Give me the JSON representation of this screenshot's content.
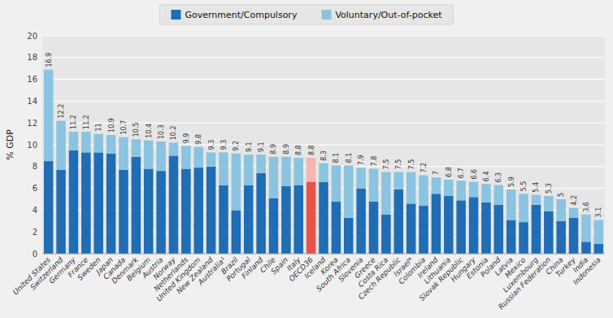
{
  "chart_data": {
    "type": "bar",
    "stacked": true,
    "grid": true,
    "legend": "top",
    "data_labels": true,
    "ylabel": "% GDP",
    "categories": [
      "United States",
      "Switzerland",
      "Germany",
      "France",
      "Sweden",
      "Japan",
      "Canada",
      "Denmark",
      "Belgium",
      "Austria",
      "Norway",
      "Netherlands",
      "United Kingdom",
      "New Zealand",
      "Australia¹",
      "Brazil",
      "Portugal",
      "Finland",
      "Chile",
      "Spain",
      "Italy",
      "OECD36",
      "Iceland",
      "Korea",
      "South Africa",
      "Slovenia",
      "Greece",
      "Costa Rica",
      "Czech Republic",
      "Israel*",
      "Colombia",
      "Ireland",
      "Lithuania",
      "Slovak Republic",
      "Hungary",
      "Estonia",
      "Poland",
      "Latvia",
      "Mexico",
      "Luxembourg",
      "Russian Federation",
      "China",
      "Turkey",
      "India",
      "Indonesia"
    ],
    "series": [
      {
        "name": "Government/Compulsory",
        "color": "#1f6db5",
        "colors": [
          "#1f6db5",
          "#1f6db5",
          "#1f6db5",
          "#1f6db5",
          "#1f6db5",
          "#1f6db5",
          "#1f6db5",
          "#1f6db5",
          "#1f6db5",
          "#1f6db5",
          "#1f6db5",
          "#1f6db5",
          "#1f6db5",
          "#1f6db5",
          "#1f6db5",
          "#1f6db5",
          "#1f6db5",
          "#1f6db5",
          "#1f6db5",
          "#1f6db5",
          "#1f6db5",
          "#e8544a",
          "#1f6db5",
          "#1f6db5",
          "#1f6db5",
          "#1f6db5",
          "#1f6db5",
          "#1f6db5",
          "#1f6db5",
          "#1f6db5",
          "#1f6db5",
          "#1f6db5",
          "#1f6db5",
          "#1f6db5",
          "#1f6db5",
          "#1f6db5",
          "#1f6db5",
          "#1f6db5",
          "#1f6db5",
          "#1f6db5",
          "#1f6db5",
          "#1f6db5",
          "#1f6db5",
          "#1f6db5",
          "#1f6db5"
        ],
        "values": [
          8.5,
          7.7,
          9.5,
          9.3,
          9.3,
          9.2,
          7.7,
          8.9,
          7.8,
          7.6,
          9.0,
          7.8,
          7.9,
          8.0,
          6.3,
          4.0,
          6.3,
          7.4,
          5.1,
          6.2,
          6.3,
          6.6,
          6.6,
          4.8,
          3.3,
          6.0,
          4.8,
          3.6,
          5.9,
          4.6,
          4.4,
          5.5,
          5.3,
          4.9,
          5.2,
          4.7,
          4.5,
          3.1,
          2.9,
          4.5,
          3.9,
          3.0,
          3.3,
          1.1,
          0.9
        ]
      },
      {
        "name": "Voluntary/Out-of-pocket",
        "color": "#8ac4e0",
        "colors": [
          "#8ac4e0",
          "#8ac4e0",
          "#8ac4e0",
          "#8ac4e0",
          "#8ac4e0",
          "#8ac4e0",
          "#8ac4e0",
          "#8ac4e0",
          "#8ac4e0",
          "#8ac4e0",
          "#8ac4e0",
          "#8ac4e0",
          "#8ac4e0",
          "#8ac4e0",
          "#8ac4e0",
          "#8ac4e0",
          "#8ac4e0",
          "#8ac4e0",
          "#8ac4e0",
          "#8ac4e0",
          "#8ac4e0",
          "#f5b5b0",
          "#8ac4e0",
          "#8ac4e0",
          "#8ac4e0",
          "#8ac4e0",
          "#8ac4e0",
          "#8ac4e0",
          "#8ac4e0",
          "#8ac4e0",
          "#8ac4e0",
          "#8ac4e0",
          "#8ac4e0",
          "#8ac4e0",
          "#8ac4e0",
          "#8ac4e0",
          "#8ac4e0",
          "#8ac4e0",
          "#8ac4e0",
          "#8ac4e0",
          "#8ac4e0",
          "#8ac4e0",
          "#8ac4e0",
          "#8ac4e0",
          "#8ac4e0"
        ],
        "values": [
          8.4,
          4.5,
          1.7,
          1.9,
          1.7,
          1.7,
          3.0,
          1.6,
          2.6,
          2.7,
          1.2,
          2.1,
          1.9,
          1.3,
          3.0,
          5.2,
          2.8,
          1.7,
          3.8,
          2.7,
          2.5,
          2.2,
          1.7,
          3.3,
          4.8,
          1.9,
          3.0,
          3.9,
          1.6,
          2.9,
          2.8,
          1.5,
          1.5,
          1.8,
          1.4,
          1.7,
          1.8,
          2.8,
          2.6,
          0.9,
          1.4,
          2.0,
          0.9,
          2.5,
          2.2
        ]
      }
    ],
    "totals": [
      16.9,
      12.2,
      11.2,
      11.2,
      11.0,
      10.9,
      10.7,
      10.5,
      10.4,
      10.3,
      10.2,
      9.9,
      9.8,
      9.3,
      9.3,
      9.2,
      9.1,
      9.1,
      8.9,
      8.9,
      8.8,
      8.8,
      8.3,
      8.1,
      8.1,
      7.9,
      7.8,
      7.5,
      7.5,
      7.5,
      7.2,
      7.0,
      6.8,
      6.7,
      6.6,
      6.4,
      6.3,
      5.9,
      5.5,
      5.4,
      5.3,
      5.0,
      4.2,
      3.6,
      3.1
    ],
    "ylim": [
      0,
      20
    ],
    "yticks": [
      0,
      2,
      4,
      6,
      8,
      10,
      12,
      14,
      16,
      18,
      20
    ]
  }
}
